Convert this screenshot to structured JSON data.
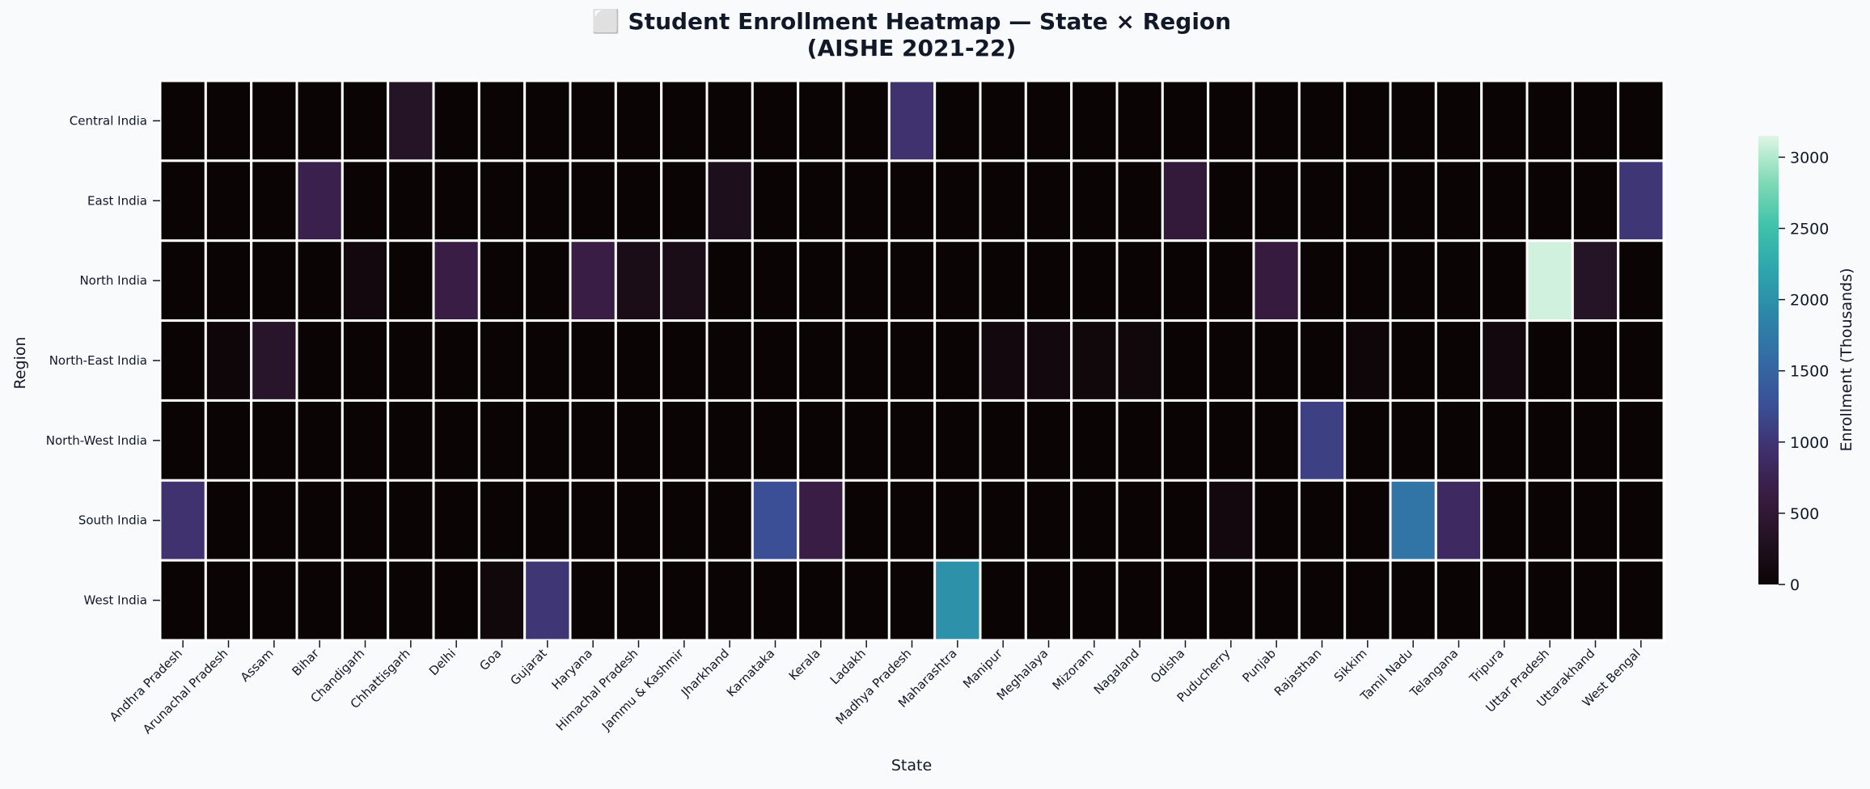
{
  "chart_data": {
    "type": "heatmap",
    "title_line1": "⬜ Student Enrollment Heatmap — State × Region",
    "title_line2": "(AISHE 2021-22)",
    "xlabel": "State",
    "ylabel": "Region",
    "colorbar_label": "Enrollment (Thousands)",
    "colorbar_ticks": [
      0,
      500,
      1000,
      1500,
      2000,
      2500,
      3000
    ],
    "vmin": 0,
    "vmax": 3150,
    "colormap": "mako",
    "x": [
      "Andhra Pradesh",
      "Arunachal Pradesh",
      "Assam",
      "Bihar",
      "Chandigarh",
      "Chhattisgarh",
      "Delhi",
      "Goa",
      "Gujarat",
      "Haryana",
      "Himachal Pradesh",
      "Jammu & Kashmir",
      "Jharkhand",
      "Karnataka",
      "Kerala",
      "Ladakh",
      "Madhya Pradesh",
      "Maharashtra",
      "Manipur",
      "Meghalaya",
      "Mizoram",
      "Nagaland",
      "Odisha",
      "Puducherry",
      "Punjab",
      "Rajasthan",
      "Sikkim",
      "Tamil Nadu",
      "Telangana",
      "Tripura",
      "Uttar Pradesh",
      "Uttarakhand",
      "West Bengal"
    ],
    "y": [
      "Central India",
      "East India",
      "North India",
      "North-East India",
      "North-West India",
      "South India",
      "West India"
    ],
    "values": [
      [
        0,
        0,
        0,
        0,
        0,
        350,
        0,
        0,
        0,
        0,
        0,
        0,
        0,
        0,
        0,
        0,
        950,
        0,
        0,
        0,
        0,
        0,
        0,
        0,
        0,
        0,
        0,
        0,
        0,
        0,
        0,
        0,
        0
      ],
      [
        0,
        0,
        0,
        700,
        0,
        0,
        0,
        0,
        0,
        0,
        0,
        0,
        250,
        0,
        0,
        0,
        0,
        0,
        0,
        0,
        0,
        0,
        550,
        0,
        0,
        0,
        0,
        0,
        0,
        0,
        0,
        0,
        1000
      ],
      [
        0,
        0,
        0,
        0,
        100,
        0,
        650,
        0,
        0,
        650,
        200,
        200,
        0,
        0,
        0,
        0,
        0,
        0,
        0,
        0,
        0,
        0,
        0,
        0,
        600,
        0,
        0,
        0,
        0,
        0,
        3100,
        350,
        0
      ],
      [
        0,
        50,
        400,
        0,
        0,
        0,
        0,
        0,
        0,
        0,
        0,
        0,
        0,
        0,
        0,
        0,
        0,
        0,
        100,
        100,
        80,
        80,
        0,
        0,
        0,
        0,
        50,
        0,
        0,
        100,
        0,
        0,
        0
      ],
      [
        0,
        0,
        0,
        0,
        0,
        0,
        0,
        0,
        0,
        0,
        0,
        0,
        0,
        0,
        0,
        0,
        0,
        0,
        0,
        0,
        0,
        0,
        0,
        0,
        0,
        1100,
        0,
        0,
        0,
        0,
        0,
        0,
        0
      ],
      [
        950,
        0,
        0,
        0,
        0,
        0,
        0,
        0,
        0,
        0,
        0,
        0,
        0,
        1250,
        650,
        0,
        0,
        0,
        0,
        0,
        0,
        0,
        0,
        100,
        0,
        0,
        0,
        1700,
        850,
        0,
        0,
        0,
        0
      ],
      [
        0,
        0,
        0,
        0,
        0,
        0,
        0,
        80,
        1000,
        0,
        0,
        0,
        0,
        0,
        0,
        0,
        0,
        2000,
        0,
        0,
        0,
        0,
        0,
        0,
        0,
        0,
        0,
        0,
        0,
        0,
        0,
        0,
        0
      ]
    ]
  }
}
